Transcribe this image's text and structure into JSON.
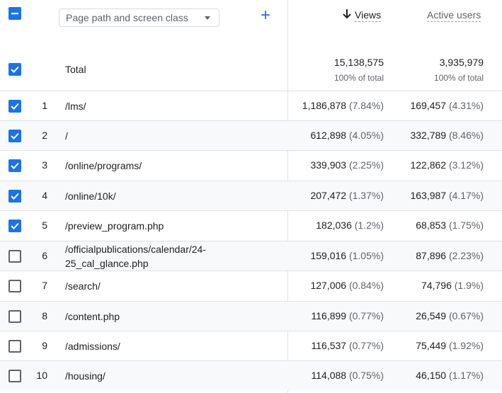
{
  "header": {
    "dimension_label": "Page path and screen class",
    "add_label": "+",
    "col_views": "Views",
    "col_active_users": "Active users"
  },
  "total": {
    "label": "Total",
    "views": "15,138,575",
    "views_sub": "100% of total",
    "users": "3,935,979",
    "users_sub": "100% of total"
  },
  "rows": [
    {
      "index": "1",
      "path": "/lms/",
      "views": "1,186,878",
      "views_pct": "(7.84%)",
      "users": "169,457",
      "users_pct": "(4.31%)",
      "checked": true
    },
    {
      "index": "2",
      "path": "/",
      "views": "612,898",
      "views_pct": "(4.05%)",
      "users": "332,789",
      "users_pct": "(8.46%)",
      "checked": true
    },
    {
      "index": "3",
      "path": "/online/programs/",
      "views": "339,903",
      "views_pct": "(2.25%)",
      "users": "122,862",
      "users_pct": "(3.12%)",
      "checked": true
    },
    {
      "index": "4",
      "path": "/online/10k/",
      "views": "207,472",
      "views_pct": "(1.37%)",
      "users": "163,987",
      "users_pct": "(4.17%)",
      "checked": true
    },
    {
      "index": "5",
      "path": "/preview_program.php",
      "views": "182,036",
      "views_pct": "(1.2%)",
      "users": "68,853",
      "users_pct": "(1.75%)",
      "checked": true
    },
    {
      "index": "6",
      "path": "/officialpublications/calendar/24-",
      "path2": "25_cal_glance.php",
      "views": "159,016",
      "views_pct": "(1.05%)",
      "users": "87,896",
      "users_pct": "(2.23%)",
      "checked": false
    },
    {
      "index": "7",
      "path": "/search/",
      "views": "127,006",
      "views_pct": "(0.84%)",
      "users": "74,796",
      "users_pct": "(1.9%)",
      "checked": false
    },
    {
      "index": "8",
      "path": "/content.php",
      "views": "116,899",
      "views_pct": "(0.77%)",
      "users": "26,549",
      "users_pct": "(0.67%)",
      "checked": false
    },
    {
      "index": "9",
      "path": "/admissions/",
      "views": "116,537",
      "views_pct": "(0.77%)",
      "users": "75,449",
      "users_pct": "(1.92%)",
      "checked": false
    },
    {
      "index": "10",
      "path": "/housing/",
      "views": "114,088",
      "views_pct": "(0.75%)",
      "users": "46,150",
      "users_pct": "(1.17%)",
      "checked": false
    }
  ]
}
